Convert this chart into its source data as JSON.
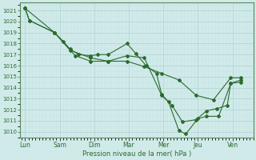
{
  "title": "",
  "xlabel": "Pression niveau de la mer( hPa )",
  "ylabel": "",
  "background_color": "#d0eaea",
  "grid_color_major": "#b8d8d8",
  "grid_color_minor": "#c8e4e4",
  "line_color": "#2d6b2d",
  "spine_color": "#5a8a5a",
  "ylim": [
    1009.5,
    1021.7
  ],
  "yticks": [
    1010,
    1011,
    1012,
    1013,
    1014,
    1015,
    1016,
    1017,
    1018,
    1019,
    1020,
    1021
  ],
  "x_labels": [
    "Lun",
    "Sam",
    "Dim",
    "Mar",
    "Mer",
    "Jeu",
    "Ven"
  ],
  "x_tick_positions": [
    0,
    1,
    2,
    3,
    4,
    5,
    6
  ],
  "xlim": [
    -0.15,
    6.6
  ],
  "series": [
    {
      "x": [
        0.0,
        0.12,
        0.85,
        1.1,
        1.3,
        1.55,
        1.9,
        2.1,
        2.4,
        2.95,
        3.2,
        3.5,
        3.8,
        3.95,
        4.15,
        4.45,
        4.65,
        5.0,
        5.25,
        5.6,
        5.95,
        6.25
      ],
      "y": [
        1021.2,
        1020.1,
        1019.0,
        1018.2,
        1017.5,
        1017.0,
        1016.9,
        1017.0,
        1017.0,
        1018.0,
        1017.1,
        1016.0,
        1015.3,
        1013.4,
        1012.7,
        1010.1,
        1009.8,
        1011.2,
        1011.4,
        1011.4,
        1014.4,
        1014.5
      ]
    },
    {
      "x": [
        0.0,
        0.12,
        0.85,
        1.3,
        1.9,
        2.4,
        2.95,
        3.45,
        3.95,
        4.45,
        4.95,
        5.45,
        5.95,
        6.25
      ],
      "y": [
        1021.2,
        1020.1,
        1019.0,
        1017.4,
        1016.7,
        1016.4,
        1016.4,
        1015.9,
        1015.3,
        1014.7,
        1013.3,
        1012.9,
        1014.9,
        1014.9
      ]
    },
    {
      "x": [
        0.0,
        0.85,
        1.45,
        1.9,
        2.4,
        2.95,
        3.45,
        3.95,
        4.25,
        4.55,
        4.95,
        5.25,
        5.55,
        5.85,
        5.95,
        6.25
      ],
      "y": [
        1021.2,
        1019.0,
        1016.9,
        1016.4,
        1016.4,
        1016.9,
        1016.7,
        1013.3,
        1012.4,
        1010.9,
        1011.1,
        1011.9,
        1012.1,
        1012.4,
        1014.4,
        1014.7
      ]
    }
  ]
}
